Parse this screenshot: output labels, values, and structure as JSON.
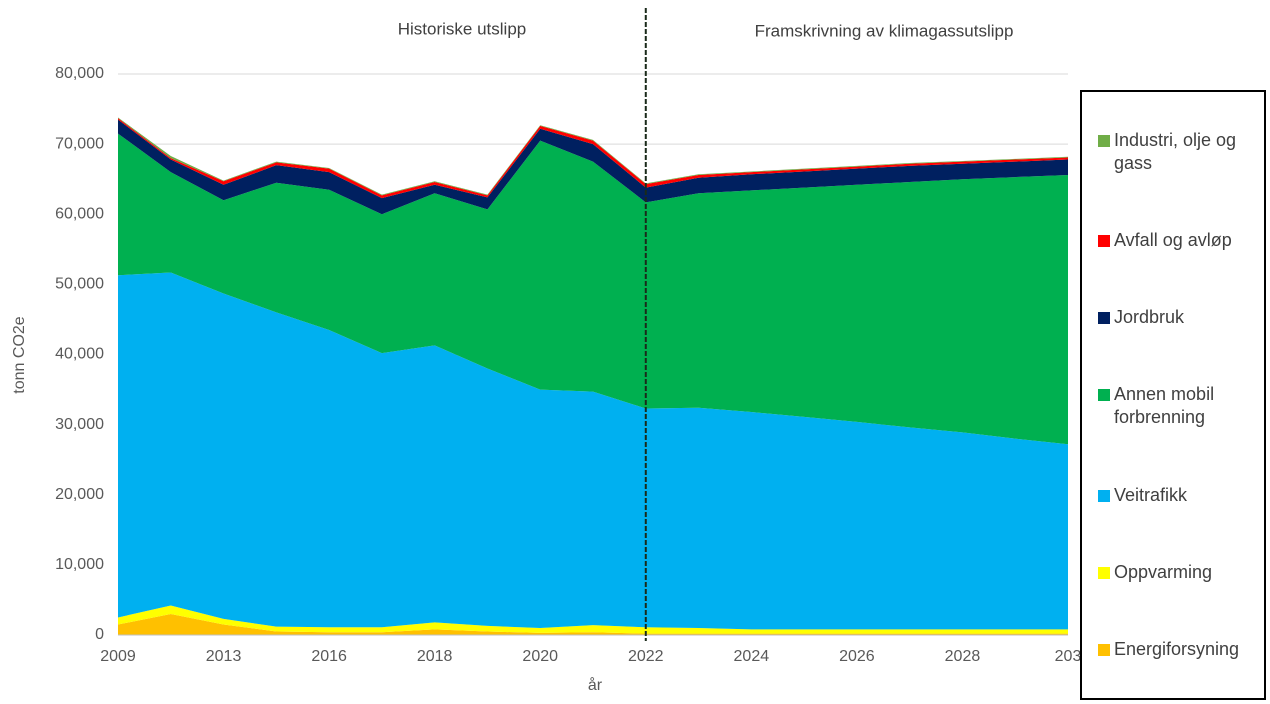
{
  "chart_data": {
    "type": "stacked_area",
    "section_labels": [
      "Historiske utslipp",
      "Framskrivning av klimagassutslipp"
    ],
    "x_label": "år",
    "y_label": "tonn CO2e",
    "categories": [
      "2009",
      null,
      "2013",
      null,
      "2016",
      null,
      "2018",
      null,
      "2020",
      null,
      "2022",
      null,
      "2024",
      null,
      "2026",
      null,
      "2028",
      null,
      "203"
    ],
    "ylim": [
      0,
      80000
    ],
    "yticks": [
      0,
      {
        "value": 10000,
        "label": "10,000"
      },
      {
        "value": 20000,
        "label": "20,000"
      },
      {
        "value": 30000,
        "label": "30,000"
      },
      {
        "value": 40000,
        "label": "40,000"
      },
      {
        "value": 50000,
        "label": "50,000"
      },
      {
        "value": 60000,
        "label": "60,000"
      },
      {
        "value": 70000,
        "label": "70,000"
      },
      {
        "value": 80000,
        "label": "80,000"
      }
    ],
    "grid": true,
    "series": [
      {
        "name": "Energiforsyning",
        "color": "#ffc000",
        "values": [
          1500,
          3000,
          1500,
          500,
          400,
          400,
          800,
          500,
          300,
          400,
          200,
          200,
          200,
          200,
          200,
          200,
          200,
          200,
          200
        ]
      },
      {
        "name": "Oppvarming",
        "color": "#ffff00",
        "values": [
          1000,
          1200,
          800,
          700,
          700,
          700,
          1000,
          800,
          700,
          1000,
          900,
          800,
          600,
          600,
          600,
          600,
          600,
          600,
          600
        ]
      },
      {
        "name": "Veitrafikk",
        "color": "#00b0f0",
        "values": [
          48800,
          47500,
          46400,
          44800,
          42400,
          39100,
          39500,
          36700,
          34000,
          33300,
          31200,
          31400,
          31000,
          30300,
          29600,
          28800,
          28100,
          27200,
          26400
        ]
      },
      {
        "name": "Annen mobil forbrenning",
        "color": "#00b050",
        "values": [
          20200,
          14300,
          13300,
          18500,
          20000,
          19800,
          21700,
          22700,
          35500,
          32800,
          29400,
          30600,
          31600,
          32700,
          33800,
          35000,
          36100,
          37300,
          38400
        ]
      },
      {
        "name": "Jordbruk",
        "color": "#002060",
        "values": [
          2000,
          1800,
          2200,
          2500,
          2500,
          2300,
          1200,
          1700,
          1700,
          2500,
          2100,
          2200,
          2300,
          2300,
          2300,
          2300,
          2200,
          2200,
          2200
        ]
      },
      {
        "name": "Avfall og avløp",
        "color": "#ff0000",
        "values": [
          200,
          200,
          500,
          400,
          500,
          400,
          400,
          300,
          400,
          500,
          500,
          400,
          300,
          300,
          300,
          300,
          300,
          300,
          300
        ]
      },
      {
        "name": "Industri, olje og gass",
        "color": "#70ad47",
        "values": [
          100,
          300,
          100,
          100,
          100,
          100,
          100,
          100,
          100,
          100,
          100,
          100,
          100,
          100,
          100,
          100,
          100,
          100,
          100
        ]
      }
    ]
  }
}
